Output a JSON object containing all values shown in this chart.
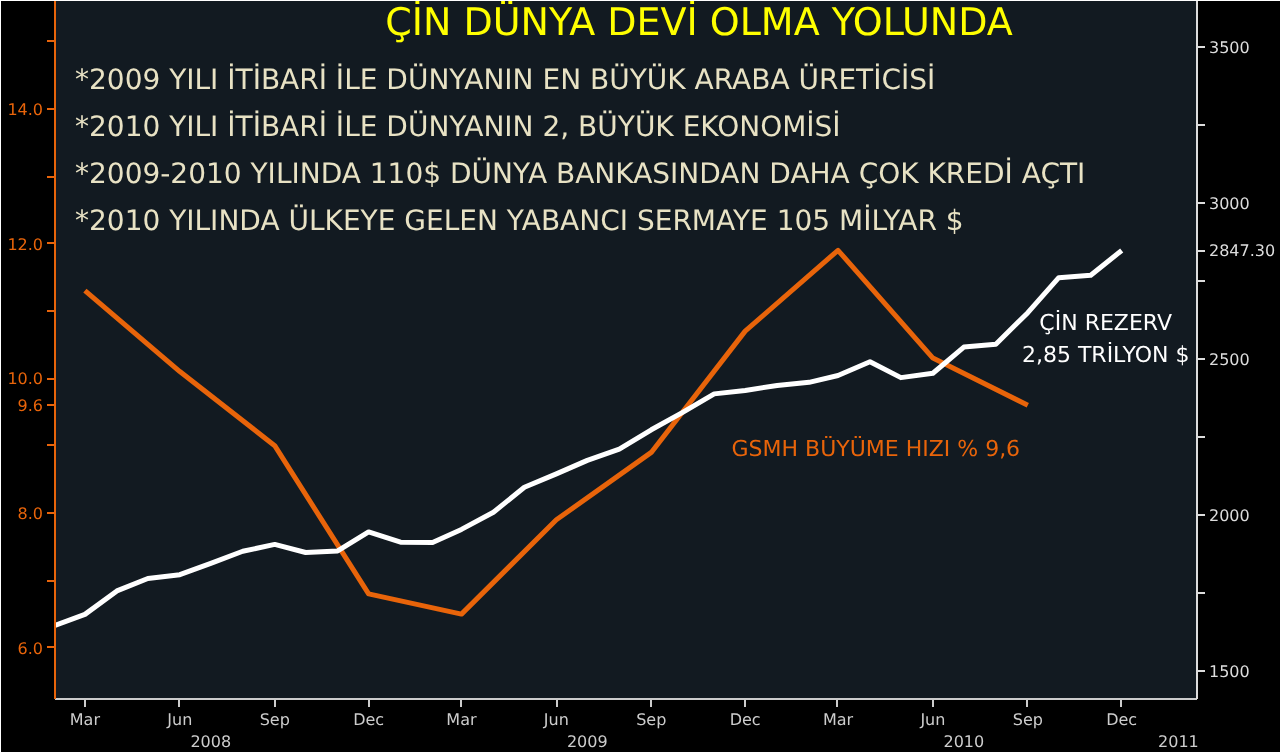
{
  "chart_data": {
    "type": "line",
    "title": "ÇİN DÜNYA DEVİ OLMA YOLUNDA",
    "annotations": [
      "*2009 YILI İTİBARİ İLE DÜNYANIN EN BÜYÜK ARABA ÜRETİCİSİ",
      "*2010 YILI İTİBARİ İLE DÜNYANIN 2, BÜYÜK EKONOMİSİ",
      "*2009-2010 YILINDA 110$ DÜNYA BANKASINDAN DAHA ÇOK KREDİ AÇTI",
      "*2010 YILINDA ÜLKEYE GELEN YABANCI SERMAYE 105 MİLYAR $"
    ],
    "series": [
      {
        "name": "GSMH BÜYÜME HIZI % 9,6",
        "color": "#e8640a",
        "x": [
          "2008-03",
          "2008-06",
          "2008-09",
          "2008-12",
          "2009-03",
          "2009-06",
          "2009-09",
          "2009-12",
          "2010-03",
          "2010-06",
          "2010-09"
        ],
        "values": [
          11.3,
          10.1,
          9.0,
          6.8,
          6.5,
          7.9,
          8.9,
          10.7,
          11.9,
          10.3,
          9.6
        ]
      },
      {
        "name": "ÇİN REZERV\n2,85 TRİLYON $",
        "color": "#ffffff",
        "axis": "y2",
        "x": [
          "2008-02",
          "2008-03",
          "2008-04",
          "2008-05",
          "2008-06",
          "2008-07",
          "2008-08",
          "2008-09",
          "2008-10",
          "2008-11",
          "2008-12",
          "2009-01",
          "2009-02",
          "2009-03",
          "2009-04",
          "2009-05",
          "2009-06",
          "2009-07",
          "2009-08",
          "2009-09",
          "2009-10",
          "2009-11",
          "2009-12",
          "2010-01",
          "2010-02",
          "2010-03",
          "2010-04",
          "2010-05",
          "2010-06",
          "2010-07",
          "2010-08",
          "2010-09",
          "2010-10",
          "2010-11",
          "2010-12"
        ],
        "values": [
          1647,
          1682,
          1757,
          1797,
          1809,
          1845,
          1884,
          1906,
          1880,
          1885,
          1946,
          1913,
          1912,
          1954,
          2009,
          2089,
          2132,
          2175,
          2211,
          2273,
          2328,
          2388,
          2399,
          2415,
          2425,
          2447,
          2491,
          2440,
          2454,
          2538,
          2547,
          2648,
          2760,
          2768,
          2847.3
        ]
      }
    ],
    "xlim": [
      "2008-02",
      "2011-02-12"
    ],
    "xticks": [
      {
        "value": "2008-03",
        "label": "Mar"
      },
      {
        "value": "2008-06",
        "label": "Jun"
      },
      {
        "value": "2008-09",
        "label": "Sep"
      },
      {
        "value": "2008-12",
        "label": "Dec"
      },
      {
        "value": "2009-03",
        "label": "Mar"
      },
      {
        "value": "2009-06",
        "label": "Jun"
      },
      {
        "value": "2009-09",
        "label": "Sep"
      },
      {
        "value": "2009-12",
        "label": "Dec"
      },
      {
        "value": "2010-03",
        "label": "Mar"
      },
      {
        "value": "2010-06",
        "label": "Jun"
      },
      {
        "value": "2010-09",
        "label": "Sep"
      },
      {
        "value": "2010-12",
        "label": "Dec"
      }
    ],
    "x2lim": [
      "2008-02",
      "2011-02-12"
    ],
    "x2ticks": [
      {
        "value": "2008-07",
        "label": "2008"
      },
      {
        "value": "2009-07",
        "label": "2009"
      },
      {
        "value": "2010-07",
        "label": "2010"
      },
      {
        "value": "2011-01-25",
        "label": "2011"
      }
    ],
    "ylim": [
      5.24,
      15.6
    ],
    "yticks": [
      {
        "value": 6,
        "label": "6.0"
      },
      {
        "value": 7,
        "label": null
      },
      {
        "value": 8,
        "label": "8.0"
      },
      {
        "value": 9,
        "label": null
      },
      {
        "value": 9.6,
        "label": "9.6"
      },
      {
        "value": 10,
        "label": "10.0"
      },
      {
        "value": 11,
        "label": null
      },
      {
        "value": 12,
        "label": "12.0"
      },
      {
        "value": 13,
        "label": null
      },
      {
        "value": 14,
        "label": "14.0"
      },
      {
        "value": 15,
        "label": null
      }
    ],
    "y2lim": [
      1411,
      3646
    ],
    "y2ticks": [
      {
        "value": 1500,
        "label": "1500"
      },
      {
        "value": 1750,
        "label": null
      },
      {
        "value": 2000,
        "label": "2000"
      },
      {
        "value": 2250,
        "label": null
      },
      {
        "value": 2500,
        "label": "2500"
      },
      {
        "value": 2750,
        "label": null
      },
      {
        "value": 2847.3,
        "label": "2847.30"
      },
      {
        "value": 3000,
        "label": "3000"
      },
      {
        "value": 3250,
        "label": null
      },
      {
        "value": 3500,
        "label": "3500"
      }
    ],
    "grid": false,
    "marker": "none",
    "line_style": "solid"
  }
}
